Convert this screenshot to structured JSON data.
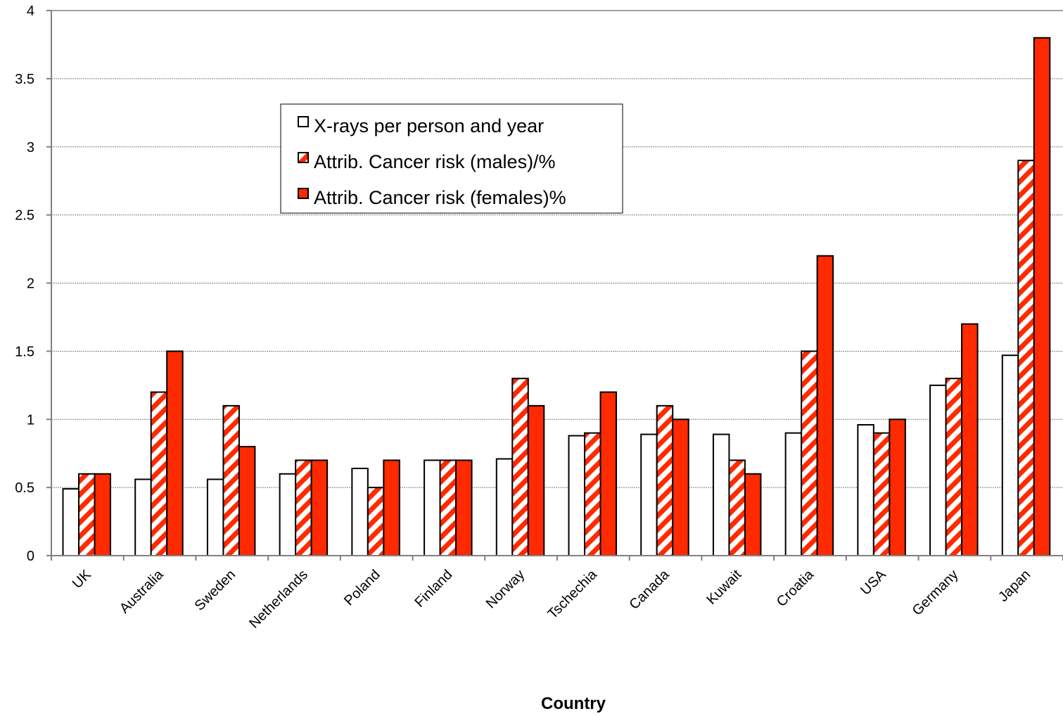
{
  "chart_data": {
    "type": "bar",
    "title": "",
    "xlabel": "Country",
    "ylabel": "",
    "ylim": [
      0,
      4
    ],
    "yticks": [
      "0",
      "0.5",
      "1",
      "1.5",
      "2",
      "2.5",
      "3",
      "3.5",
      "4"
    ],
    "grid": "horizontal dotted",
    "legend_position": "top-center",
    "categories": [
      "UK",
      "Australia",
      "Sweden",
      "Netherlands",
      "Poland",
      "Finland",
      "Norway",
      "Tschechia",
      "Canada",
      "Kuwait",
      "Croatia",
      "USA",
      "Germany",
      "Japan"
    ],
    "series": [
      {
        "name": "X-rays per person and year",
        "fill": "white",
        "values": [
          0.49,
          0.56,
          0.56,
          0.6,
          0.64,
          0.7,
          0.71,
          0.88,
          0.89,
          0.89,
          0.9,
          0.96,
          1.25,
          1.47
        ]
      },
      {
        "name": "Attrib. Cancer risk (males)/%",
        "fill": "hatched",
        "values": [
          0.6,
          1.2,
          1.1,
          0.7,
          0.5,
          0.7,
          1.3,
          0.9,
          1.1,
          0.7,
          1.5,
          0.9,
          1.3,
          2.9
        ]
      },
      {
        "name": "Attrib. Cancer risk (females)%",
        "fill": "solid",
        "values": [
          0.6,
          1.5,
          0.8,
          0.7,
          0.7,
          0.7,
          1.1,
          1.2,
          1.0,
          0.6,
          2.2,
          1.0,
          1.7,
          3.8
        ]
      }
    ],
    "colors": {
      "red": "#ff2a00",
      "white": "#ffffff",
      "outline": "#000000",
      "grid": "#808080",
      "axis": "#808080"
    }
  }
}
